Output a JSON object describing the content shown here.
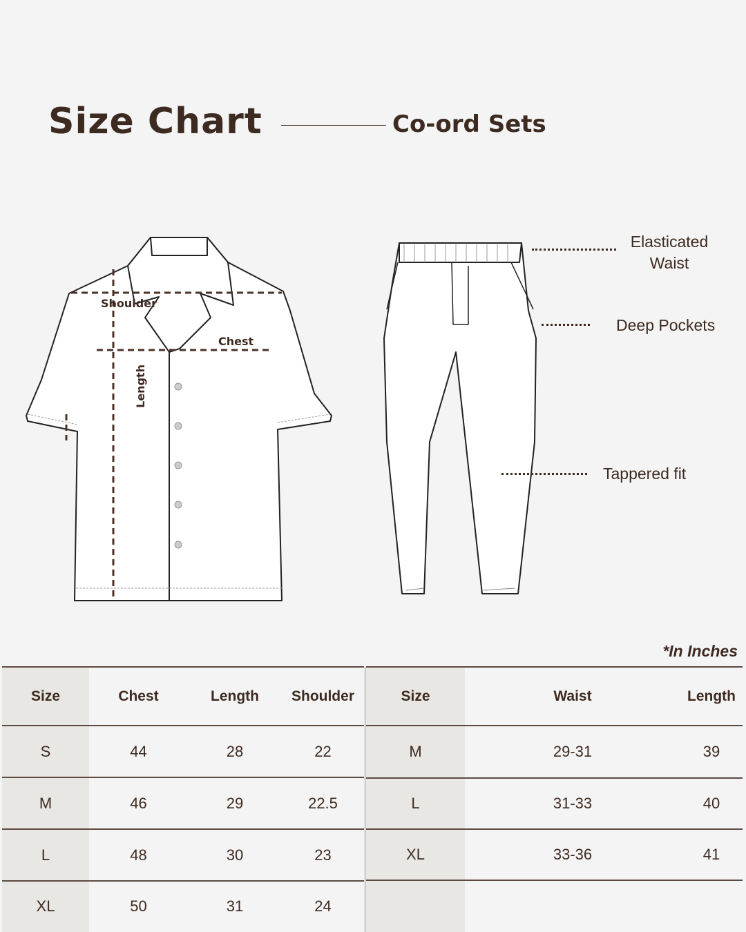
{
  "header": {
    "title": "Size Chart",
    "subtitle": "Co-ord Sets"
  },
  "shirt_labels": {
    "shoulder": "Shoulder",
    "chest": "Chest",
    "length": "Length"
  },
  "pants_callouts": {
    "waist_line1": "Elasticated",
    "waist_line2": "Waist",
    "pockets": "Deep Pockets",
    "fit": "Tappered fit"
  },
  "unit_note": "*In Inches",
  "colors": {
    "text": "#3d2a20",
    "background": "#f4f4f4",
    "size_column": "#e9e7e3"
  },
  "shirt_table": {
    "columns": [
      "Size",
      "Chest",
      "Length",
      "Shoulder"
    ],
    "rows": [
      [
        "S",
        "44",
        "28",
        "22"
      ],
      [
        "M",
        "46",
        "29",
        "22.5"
      ],
      [
        "L",
        "48",
        "30",
        "23"
      ],
      [
        "XL",
        "50",
        "31",
        "24"
      ]
    ]
  },
  "pants_table": {
    "columns": [
      "Size",
      "Waist",
      "Length"
    ],
    "rows": [
      [
        "M",
        "29-31",
        "39"
      ],
      [
        "L",
        "31-33",
        "40"
      ],
      [
        "XL",
        "33-36",
        "41"
      ]
    ]
  }
}
